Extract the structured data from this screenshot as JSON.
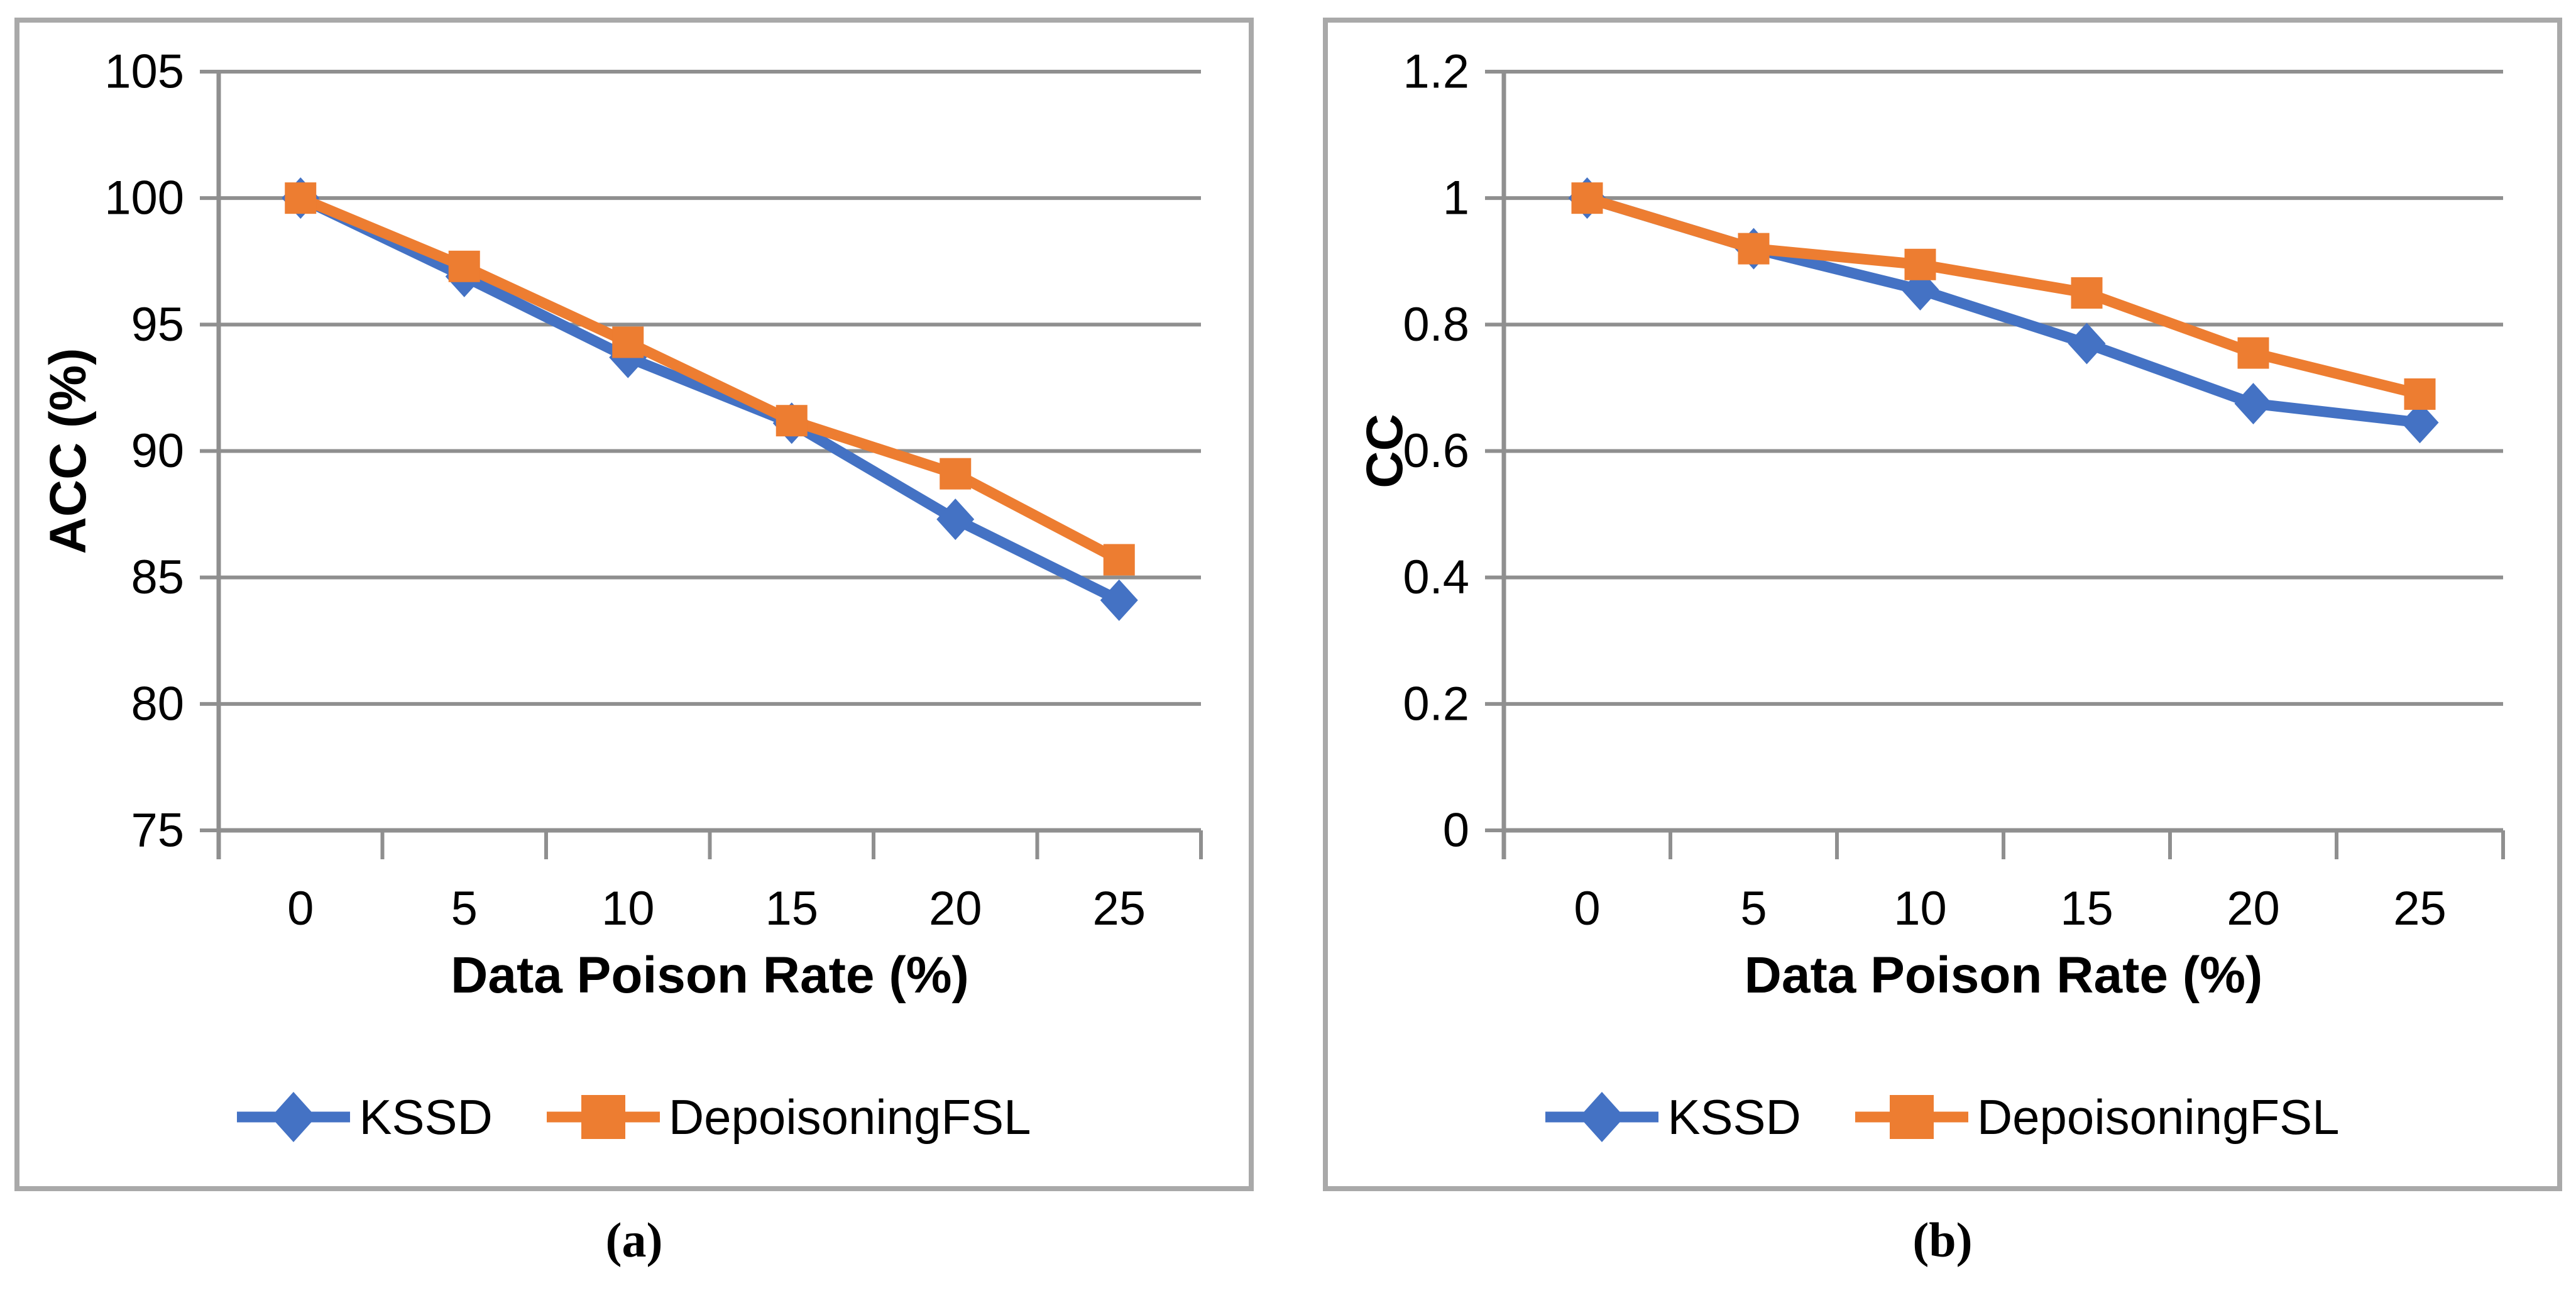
{
  "figure": {
    "colors": {
      "series_kssd": "#4472C4",
      "series_depoisoningfsl": "#ED7D31",
      "gridline": "#8F8F8F",
      "panel_border": "#A9A9A9",
      "text": "#000000"
    }
  },
  "chart_data": [
    {
      "type": "line",
      "caption": "(a)",
      "xlabel": "Data Poison Rate (%)",
      "ylabel": "ACC (%)",
      "categories": [
        "0",
        "5",
        "10",
        "15",
        "20",
        "25"
      ],
      "ylim": [
        75,
        105
      ],
      "yticks": [
        75,
        80,
        85,
        90,
        95,
        100,
        105
      ],
      "ytick_labels": [
        "75",
        "80",
        "85",
        "90",
        "95",
        "100",
        "105"
      ],
      "grid": true,
      "legend_position": "bottom",
      "series": [
        {
          "name": "KSSD",
          "color": "#4472C4",
          "marker": "diamond",
          "values": [
            100,
            96.9,
            93.7,
            91.1,
            87.3,
            84.1
          ]
        },
        {
          "name": "DepoisoningFSL",
          "color": "#ED7D31",
          "marker": "square",
          "values": [
            100,
            97.3,
            94.3,
            91.2,
            89.1,
            85.7
          ]
        }
      ]
    },
    {
      "type": "line",
      "caption": "(b)",
      "xlabel": "Data Poison Rate (%)",
      "ylabel": "CC",
      "categories": [
        "0",
        "5",
        "10",
        "15",
        "20",
        "25"
      ],
      "ylim": [
        0,
        1.2
      ],
      "yticks": [
        0,
        0.2,
        0.4,
        0.6,
        0.8,
        1,
        1.2
      ],
      "ytick_labels": [
        "0",
        "0.2",
        "0.4",
        "0.6",
        "0.8",
        "1",
        "1.2"
      ],
      "grid": true,
      "legend_position": "bottom",
      "series": [
        {
          "name": "KSSD",
          "color": "#4472C4",
          "marker": "diamond",
          "values": [
            1.0,
            0.92,
            0.855,
            0.77,
            0.675,
            0.645
          ]
        },
        {
          "name": "DepoisoningFSL",
          "color": "#ED7D31",
          "marker": "square",
          "values": [
            1.0,
            0.92,
            0.895,
            0.85,
            0.755,
            0.69
          ]
        }
      ]
    }
  ]
}
